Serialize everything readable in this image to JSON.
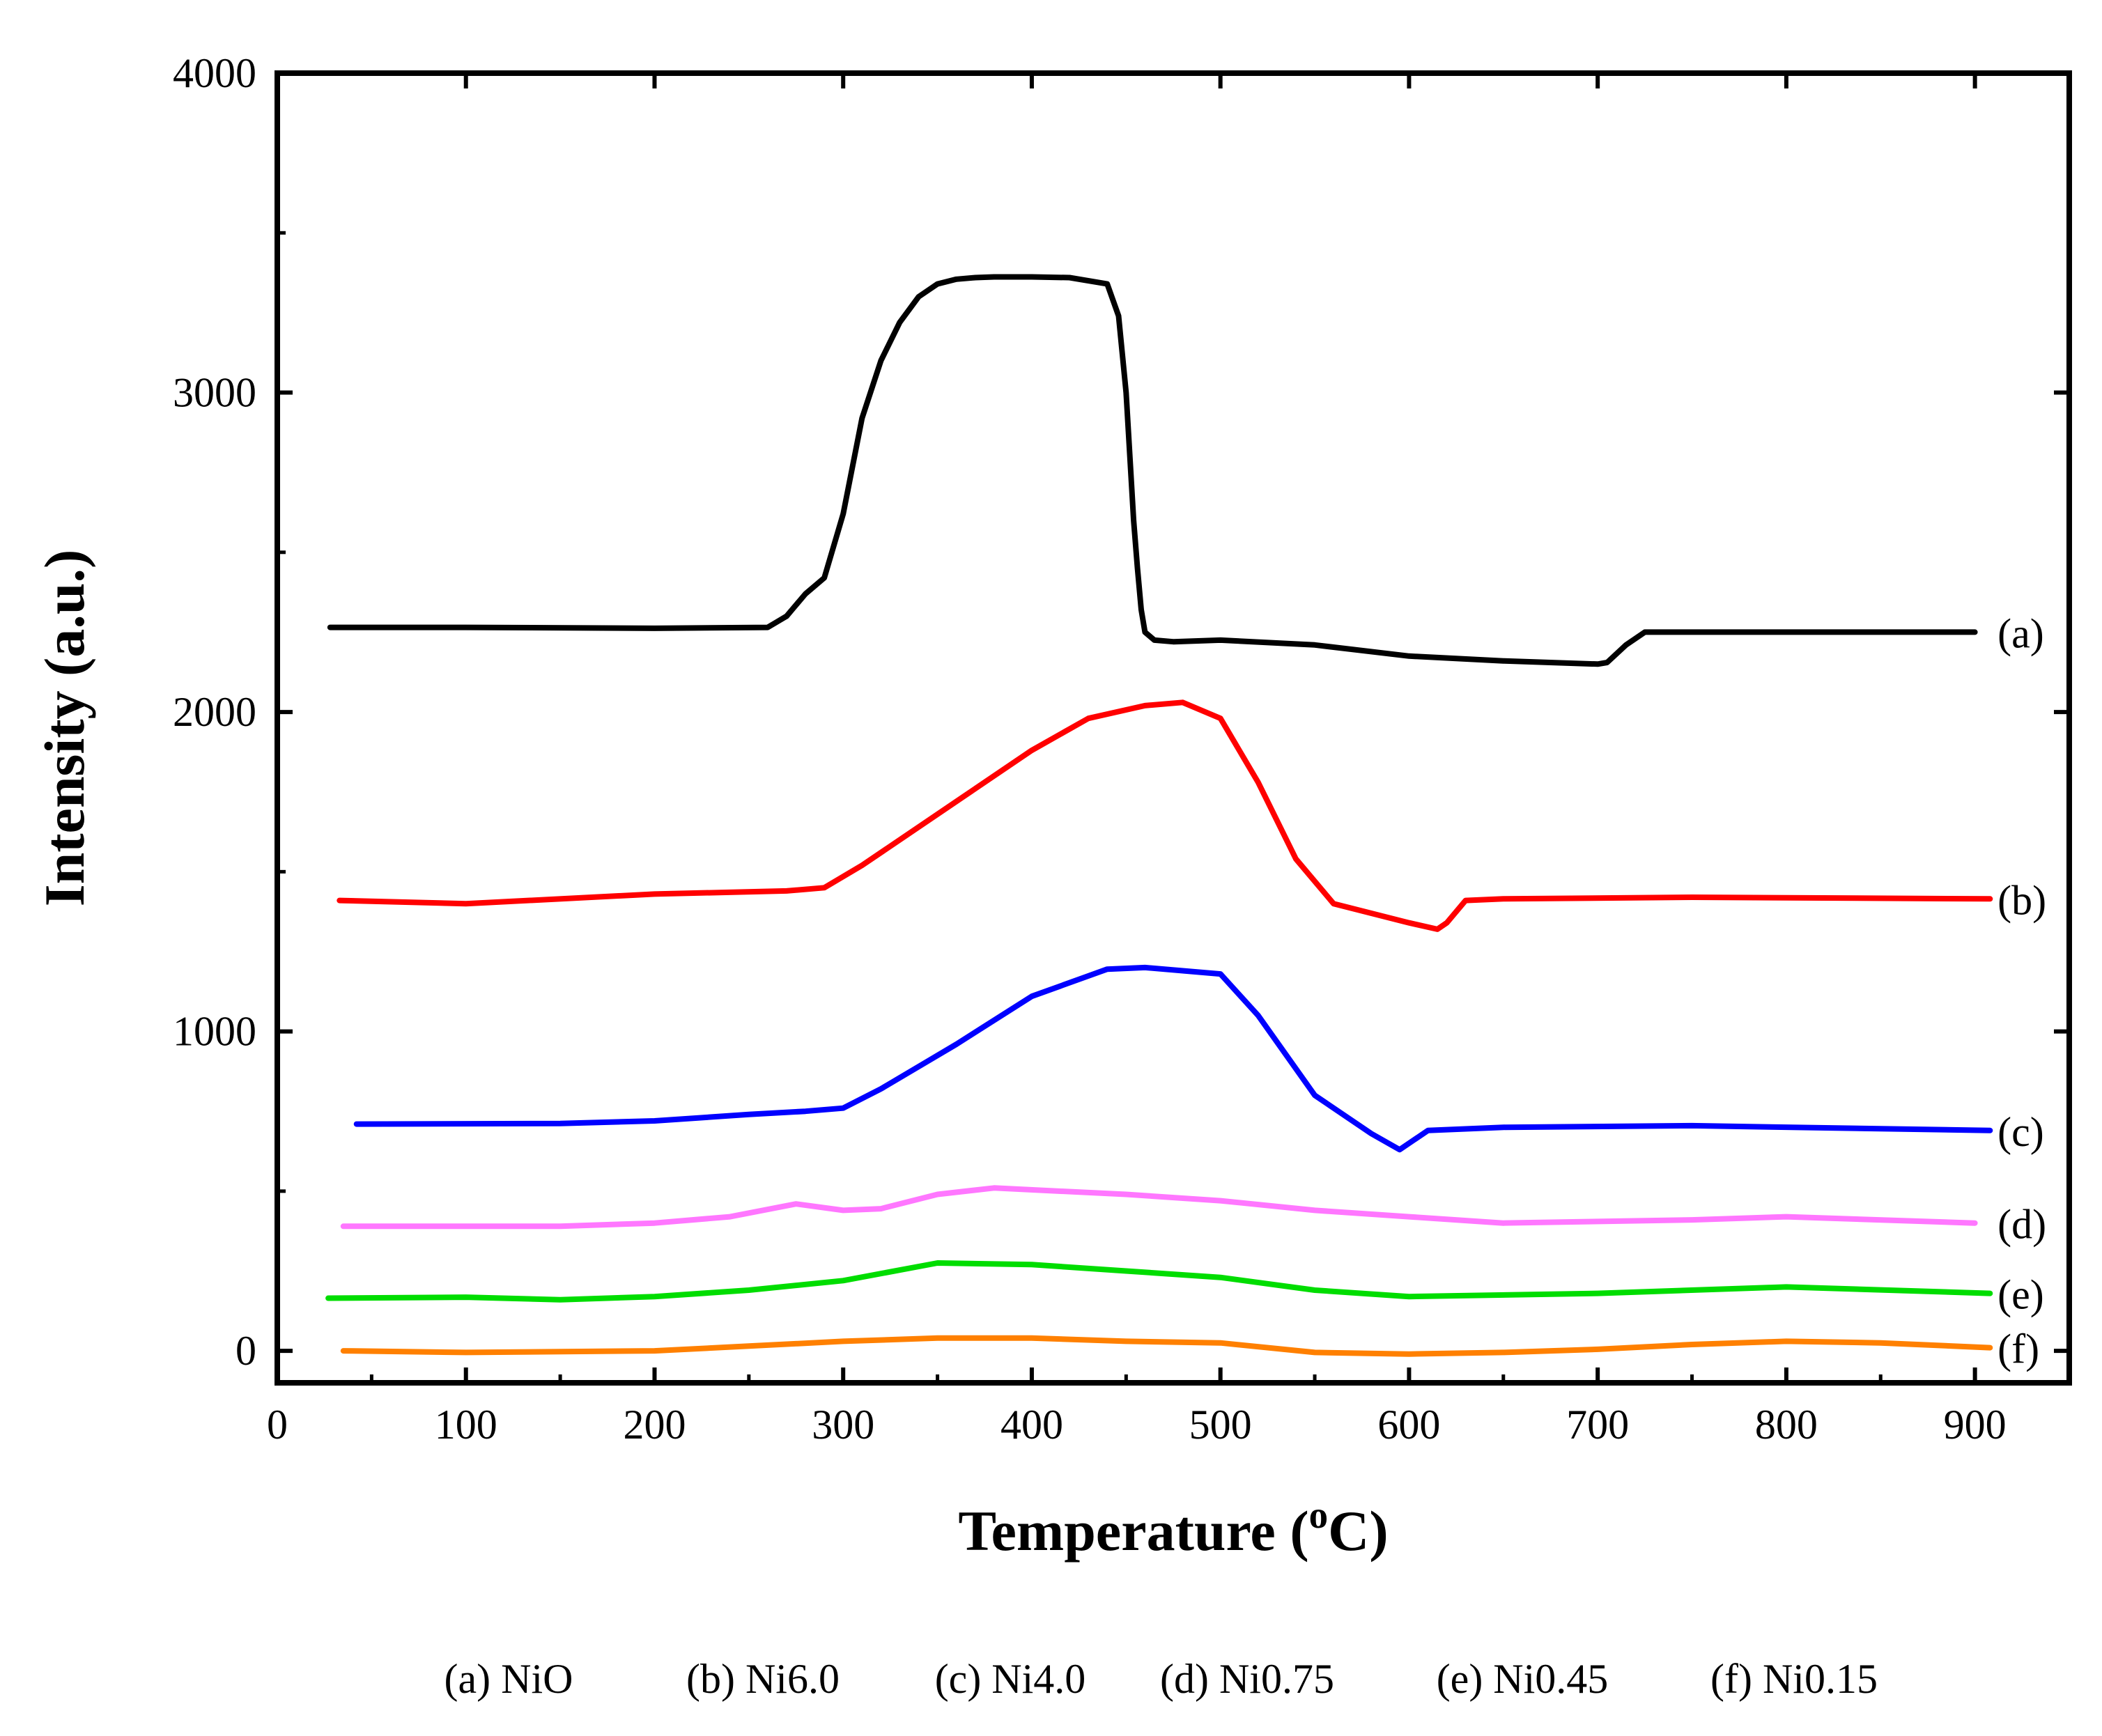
{
  "chart_data": {
    "type": "line",
    "title": "",
    "xlabel": "Temperature (",
    "xlabel_sup": "o",
    "xlabel_suffix": "C)",
    "ylabel": "Intensity (a.u.)",
    "xlim": [
      0,
      950
    ],
    "ylim": [
      -100,
      4000
    ],
    "x_ticks": [
      0,
      100,
      200,
      300,
      400,
      500,
      600,
      700,
      800,
      900
    ],
    "x_tick_labels": [
      "0",
      "100",
      "200",
      "300",
      "400",
      "500",
      "600",
      "700",
      "800",
      "900"
    ],
    "y_ticks": [
      0,
      1000,
      2000,
      3000,
      4000
    ],
    "y_tick_labels": [
      "0",
      "1000",
      "2000",
      "3000",
      "4000"
    ],
    "grid": false,
    "legend": [
      "(a) NiO",
      "(b) Ni6.0",
      "(c) Ni4.0",
      "(d) Ni0.75",
      "(e) Ni0.45",
      "(f) Ni0.15"
    ],
    "legend_position": "bottom",
    "series": [
      {
        "name": "(a)",
        "color": "#000000",
        "x": [
          28,
          100,
          200,
          260,
          270,
          280,
          290,
          300,
          310,
          320,
          330,
          340,
          350,
          360,
          370,
          380,
          400,
          420,
          440,
          446,
          450,
          452,
          454,
          456,
          458,
          460,
          465,
          475,
          500,
          550,
          600,
          650,
          700,
          705,
          715,
          725,
          800,
          900
        ],
        "y": [
          2265,
          2265,
          2262,
          2265,
          2300,
          2370,
          2420,
          2620,
          2920,
          3100,
          3220,
          3300,
          3340,
          3355,
          3360,
          3362,
          3362,
          3360,
          3340,
          3240,
          3000,
          2800,
          2600,
          2450,
          2320,
          2250,
          2225,
          2220,
          2225,
          2210,
          2175,
          2160,
          2150,
          2155,
          2210,
          2250,
          2250,
          2250
        ]
      },
      {
        "name": "(b)",
        "color": "#ff0000",
        "x": [
          33,
          100,
          200,
          270,
          290,
          310,
          350,
          400,
          430,
          460,
          480,
          500,
          520,
          540,
          560,
          600,
          615,
          620,
          630,
          650,
          750,
          908
        ],
        "y": [
          1410,
          1400,
          1430,
          1440,
          1450,
          1520,
          1680,
          1880,
          1980,
          2020,
          2030,
          1980,
          1780,
          1540,
          1400,
          1340,
          1320,
          1340,
          1410,
          1415,
          1420,
          1415
        ]
      },
      {
        "name": "(c)",
        "color": "#0000ff",
        "x": [
          42,
          150,
          200,
          250,
          280,
          300,
          320,
          360,
          400,
          440,
          460,
          500,
          520,
          550,
          580,
          595,
          610,
          650,
          750,
          908
        ],
        "y": [
          710,
          712,
          720,
          740,
          750,
          760,
          820,
          960,
          1110,
          1195,
          1200,
          1180,
          1050,
          800,
          680,
          630,
          690,
          700,
          705,
          690
        ]
      },
      {
        "name": "(d)",
        "color": "#ff77ff",
        "x": [
          35,
          150,
          200,
          240,
          275,
          300,
          320,
          350,
          380,
          450,
          500,
          550,
          600,
          650,
          750,
          800,
          900
        ],
        "y": [
          390,
          390,
          400,
          420,
          460,
          440,
          445,
          490,
          510,
          490,
          470,
          440,
          420,
          400,
          410,
          420,
          400
        ]
      },
      {
        "name": "(e)",
        "color": "#00dd00",
        "x": [
          27,
          100,
          150,
          200,
          250,
          300,
          350,
          400,
          450,
          500,
          550,
          600,
          700,
          800,
          908
        ],
        "y": [
          165,
          168,
          160,
          170,
          190,
          220,
          275,
          270,
          250,
          230,
          190,
          170,
          180,
          200,
          180
        ]
      },
      {
        "name": "(f)",
        "color": "#ff8000",
        "x": [
          35,
          100,
          200,
          250,
          300,
          350,
          400,
          450,
          500,
          550,
          600,
          650,
          700,
          750,
          800,
          850,
          908
        ],
        "y": [
          0,
          -5,
          0,
          15,
          30,
          40,
          40,
          30,
          25,
          -5,
          -10,
          -5,
          5,
          20,
          30,
          25,
          10
        ]
      }
    ]
  }
}
